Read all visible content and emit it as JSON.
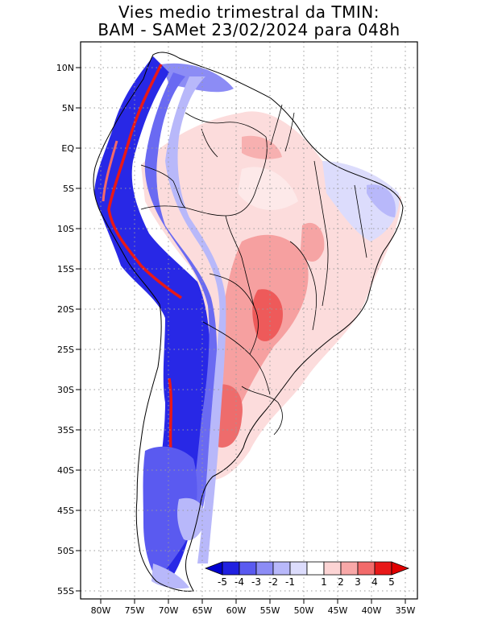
{
  "title": {
    "line1": "Vies medio trimestral da TMIN:",
    "line2": "BAM - SAMet 23/02/2024  para 048h"
  },
  "map": {
    "lat_labels": [
      "10N",
      "5N",
      "EQ",
      "5S",
      "10S",
      "15S",
      "20S",
      "25S",
      "30S",
      "35S",
      "40S",
      "45S",
      "50S",
      "55S"
    ],
    "lon_labels": [
      "80W",
      "75W",
      "70W",
      "65W",
      "60W",
      "55W",
      "50W",
      "45W",
      "40W",
      "35W"
    ],
    "lat_range": [
      -56,
      13
    ],
    "lon_range": [
      -83,
      -34
    ]
  },
  "colorbar": {
    "labels": [
      "-5",
      "-4",
      "-3",
      "-2",
      "-1",
      "1",
      "2",
      "3",
      "4",
      "5"
    ],
    "colors": [
      "#2020e0",
      "#5a5af0",
      "#8c8cf5",
      "#b8b8fa",
      "#dcdcfc",
      "#ffffff",
      "#fcd4d4",
      "#f8a8a8",
      "#f26a6a",
      "#e81818"
    ],
    "under_color": "#0000d0",
    "over_color": "#e00000"
  },
  "colors": {
    "frame": "#000000",
    "grid": "#9a9a9a",
    "coast": "#000000"
  }
}
